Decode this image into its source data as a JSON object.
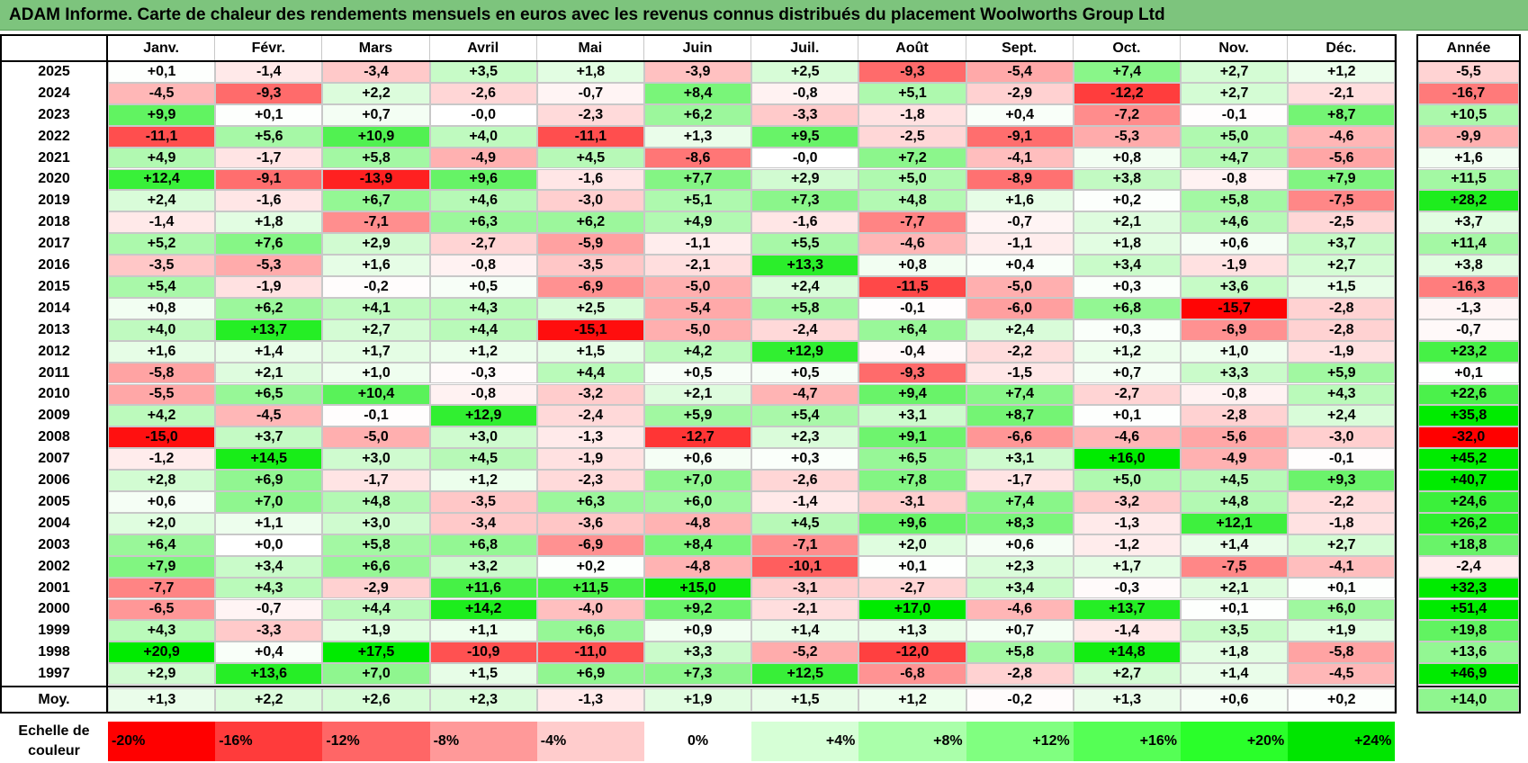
{
  "title": "ADAM Informe. Carte de chaleur des rendements mensuels en euros avec les revenus connus distribués du placement Woolworths Group Ltd",
  "annee_label": "Année",
  "moy_label": "Moy.",
  "scale_label_line1": "Echelle de",
  "scale_label_line2": "couleur",
  "scale_labels": [
    "-20%",
    "-16%",
    "-12%",
    "-8%",
    "-4%",
    "0%",
    "+4%",
    "+8%",
    "+12%",
    "+16%",
    "+20%",
    "+24%"
  ],
  "scale_colors": [
    "#ff0000",
    "#ff3b3b",
    "#ff6666",
    "#ff9999",
    "#ffcccc",
    "#ffffff",
    "#d6ffd6",
    "#aaffaa",
    "#80ff80",
    "#55ff55",
    "#2aff2a",
    "#00e600"
  ],
  "chart_data": {
    "type": "heatmap",
    "title": "ADAM Informe. Carte de chaleur des rendements mensuels en euros avec les revenus connus distribués du placement Woolworths Group Ltd",
    "months": [
      "Janv.",
      "Févr.",
      "Mars",
      "Avril",
      "Mai",
      "Juin",
      "Juil.",
      "Août",
      "Sept.",
      "Oct.",
      "Nov.",
      "Déc."
    ],
    "rows": [
      {
        "year": "2025",
        "values": [
          "+0,1",
          "-1,4",
          "-3,4",
          "+3,5",
          "+1,8",
          "-3,9",
          "+2,5",
          "-9,3",
          "-5,4",
          "+7,4",
          "+2,7",
          "+1,2"
        ],
        "annual": "-5,5"
      },
      {
        "year": "2024",
        "values": [
          "-4,5",
          "-9,3",
          "+2,2",
          "-2,6",
          "-0,7",
          "+8,4",
          "-0,8",
          "+5,1",
          "-2,9",
          "-12,2",
          "+2,7",
          "-2,1"
        ],
        "annual": "-16,7"
      },
      {
        "year": "2023",
        "values": [
          "+9,9",
          "+0,1",
          "+0,7",
          "-0,0",
          "-2,3",
          "+6,2",
          "-3,3",
          "-1,8",
          "+0,4",
          "-7,2",
          "-0,1",
          "+8,7"
        ],
        "annual": "+10,5"
      },
      {
        "year": "2022",
        "values": [
          "-11,1",
          "+5,6",
          "+10,9",
          "+4,0",
          "-11,1",
          "+1,3",
          "+9,5",
          "-2,5",
          "-9,1",
          "-5,3",
          "+5,0",
          "-4,6"
        ],
        "annual": "-9,9"
      },
      {
        "year": "2021",
        "values": [
          "+4,9",
          "-1,7",
          "+5,8",
          "-4,9",
          "+4,5",
          "-8,6",
          "-0,0",
          "+7,2",
          "-4,1",
          "+0,8",
          "+4,7",
          "-5,6"
        ],
        "annual": "+1,6"
      },
      {
        "year": "2020",
        "values": [
          "+12,4",
          "-9,1",
          "-13,9",
          "+9,6",
          "-1,6",
          "+7,7",
          "+2,9",
          "+5,0",
          "-8,9",
          "+3,8",
          "-0,8",
          "+7,9"
        ],
        "annual": "+11,5"
      },
      {
        "year": "2019",
        "values": [
          "+2,4",
          "-1,6",
          "+6,7",
          "+4,6",
          "-3,0",
          "+5,1",
          "+7,3",
          "+4,8",
          "+1,6",
          "+0,2",
          "+5,8",
          "-7,5"
        ],
        "annual": "+28,2"
      },
      {
        "year": "2018",
        "values": [
          "-1,4",
          "+1,8",
          "-7,1",
          "+6,3",
          "+6,2",
          "+4,9",
          "-1,6",
          "-7,7",
          "-0,7",
          "+2,1",
          "+4,6",
          "-2,5"
        ],
        "annual": "+3,7"
      },
      {
        "year": "2017",
        "values": [
          "+5,2",
          "+7,6",
          "+2,9",
          "-2,7",
          "-5,9",
          "-1,1",
          "+5,5",
          "-4,6",
          "-1,1",
          "+1,8",
          "+0,6",
          "+3,7"
        ],
        "annual": "+11,4"
      },
      {
        "year": "2016",
        "values": [
          "-3,5",
          "-5,3",
          "+1,6",
          "-0,8",
          "-3,5",
          "-2,1",
          "+13,3",
          "+0,8",
          "+0,4",
          "+3,4",
          "-1,9",
          "+2,7"
        ],
        "annual": "+3,8"
      },
      {
        "year": "2015",
        "values": [
          "+5,4",
          "-1,9",
          "-0,2",
          "+0,5",
          "-6,9",
          "-5,0",
          "+2,4",
          "-11,5",
          "-5,0",
          "+0,3",
          "+3,6",
          "+1,5"
        ],
        "annual": "-16,3"
      },
      {
        "year": "2014",
        "values": [
          "+0,8",
          "+6,2",
          "+4,1",
          "+4,3",
          "+2,5",
          "-5,4",
          "+5,8",
          "-0,1",
          "-6,0",
          "+6,8",
          "-15,7",
          "-2,8"
        ],
        "annual": "-1,3"
      },
      {
        "year": "2013",
        "values": [
          "+4,0",
          "+13,7",
          "+2,7",
          "+4,4",
          "-15,1",
          "-5,0",
          "-2,4",
          "+6,4",
          "+2,4",
          "+0,3",
          "-6,9",
          "-2,8"
        ],
        "annual": "-0,7"
      },
      {
        "year": "2012",
        "values": [
          "+1,6",
          "+1,4",
          "+1,7",
          "+1,2",
          "+1,5",
          "+4,2",
          "+12,9",
          "-0,4",
          "-2,2",
          "+1,2",
          "+1,0",
          "-1,9"
        ],
        "annual": "+23,2"
      },
      {
        "year": "2011",
        "values": [
          "-5,8",
          "+2,1",
          "+1,0",
          "-0,3",
          "+4,4",
          "+0,5",
          "+0,5",
          "-9,3",
          "-1,5",
          "+0,7",
          "+3,3",
          "+5,9"
        ],
        "annual": "+0,1"
      },
      {
        "year": "2010",
        "values": [
          "-5,5",
          "+6,5",
          "+10,4",
          "-0,8",
          "-3,2",
          "+2,1",
          "-4,7",
          "+9,4",
          "+7,4",
          "-2,7",
          "-0,8",
          "+4,3"
        ],
        "annual": "+22,6"
      },
      {
        "year": "2009",
        "values": [
          "+4,2",
          "-4,5",
          "-0,1",
          "+12,9",
          "-2,4",
          "+5,9",
          "+5,4",
          "+3,1",
          "+8,7",
          "+0,1",
          "-2,8",
          "+2,4"
        ],
        "annual": "+35,8"
      },
      {
        "year": "2008",
        "values": [
          "-15,0",
          "+3,7",
          "-5,0",
          "+3,0",
          "-1,3",
          "-12,7",
          "+2,3",
          "+9,1",
          "-6,6",
          "-4,6",
          "-5,6",
          "-3,0"
        ],
        "annual": "-32,0"
      },
      {
        "year": "2007",
        "values": [
          "-1,2",
          "+14,5",
          "+3,0",
          "+4,5",
          "-1,9",
          "+0,6",
          "+0,3",
          "+6,5",
          "+3,1",
          "+16,0",
          "-4,9",
          "-0,1"
        ],
        "annual": "+45,2"
      },
      {
        "year": "2006",
        "values": [
          "+2,8",
          "+6,9",
          "-1,7",
          "+1,2",
          "-2,3",
          "+7,0",
          "-2,6",
          "+7,8",
          "-1,7",
          "+5,0",
          "+4,5",
          "+9,3"
        ],
        "annual": "+40,7"
      },
      {
        "year": "2005",
        "values": [
          "+0,6",
          "+7,0",
          "+4,8",
          "-3,5",
          "+6,3",
          "+6,0",
          "-1,4",
          "-3,1",
          "+7,4",
          "-3,2",
          "+4,8",
          "-2,2"
        ],
        "annual": "+24,6"
      },
      {
        "year": "2004",
        "values": [
          "+2,0",
          "+1,1",
          "+3,0",
          "-3,4",
          "-3,6",
          "-4,8",
          "+4,5",
          "+9,6",
          "+8,3",
          "-1,3",
          "+12,1",
          "-1,8"
        ],
        "annual": "+26,2"
      },
      {
        "year": "2003",
        "values": [
          "+6,4",
          "+0,0",
          "+5,8",
          "+6,8",
          "-6,9",
          "+8,4",
          "-7,1",
          "+2,0",
          "+0,6",
          "-1,2",
          "+1,4",
          "+2,7"
        ],
        "annual": "+18,8"
      },
      {
        "year": "2002",
        "values": [
          "+7,9",
          "+3,4",
          "+6,6",
          "+3,2",
          "+0,2",
          "-4,8",
          "-10,1",
          "+0,1",
          "+2,3",
          "+1,7",
          "-7,5",
          "-4,1"
        ],
        "annual": "-2,4"
      },
      {
        "year": "2001",
        "values": [
          "-7,7",
          "+4,3",
          "-2,9",
          "+11,6",
          "+11,5",
          "+15,0",
          "-3,1",
          "-2,7",
          "+3,4",
          "-0,3",
          "+2,1",
          "+0,1"
        ],
        "annual": "+32,3"
      },
      {
        "year": "2000",
        "values": [
          "-6,5",
          "-0,7",
          "+4,4",
          "+14,2",
          "-4,0",
          "+9,2",
          "-2,1",
          "+17,0",
          "-4,6",
          "+13,7",
          "+0,1",
          "+6,0"
        ],
        "annual": "+51,4"
      },
      {
        "year": "1999",
        "values": [
          "+4,3",
          "-3,3",
          "+1,9",
          "+1,1",
          "+6,6",
          "+0,9",
          "+1,4",
          "+1,3",
          "+0,7",
          "-1,4",
          "+3,5",
          "+1,9"
        ],
        "annual": "+19,8"
      },
      {
        "year": "1998",
        "values": [
          "+20,9",
          "+0,4",
          "+17,5",
          "-10,9",
          "-11,0",
          "+3,3",
          "-5,2",
          "-12,0",
          "+5,8",
          "+14,8",
          "+1,8",
          "-5,8"
        ],
        "annual": "+13,6"
      },
      {
        "year": "1997",
        "values": [
          "+2,9",
          "+13,6",
          "+7,0",
          "+1,5",
          "+6,9",
          "+7,3",
          "+12,5",
          "-6,8",
          "-2,8",
          "+2,7",
          "+1,4",
          "-4,5"
        ],
        "annual": "+46,9"
      }
    ],
    "average": {
      "values": [
        "+1,3",
        "+2,2",
        "+2,6",
        "+2,3",
        "-1,3",
        "+1,9",
        "+1,5",
        "+1,2",
        "-0,2",
        "+1,3",
        "+0,6",
        "+0,2"
      ],
      "annual": "+14,0"
    }
  }
}
